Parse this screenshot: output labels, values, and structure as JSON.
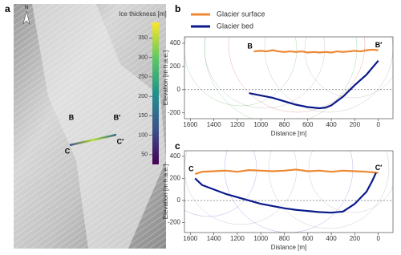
{
  "map": {
    "label": "a",
    "north": "N",
    "colorbar_title": "Ice thickness [m]",
    "colorbar_lim": [
      25,
      390
    ],
    "colorbar_ticks": [
      50,
      100,
      150,
      200,
      250,
      300,
      350
    ],
    "profile_labels": [
      "B",
      "B′",
      "C",
      "C′"
    ]
  },
  "chart_data": [
    {
      "type": "line",
      "label": "b",
      "xlabel": "Distance [m]",
      "ylabel": "Elevation [m h.a.e.]",
      "xlim": [
        1650,
        -125
      ],
      "ylim": [
        -250,
        455
      ],
      "xticks": [
        1600,
        1400,
        1200,
        1000,
        800,
        600,
        400,
        200,
        0
      ],
      "yticks": [
        -200,
        0,
        200,
        400
      ],
      "hlines": [
        0
      ],
      "legend": "top",
      "annotations": [
        "B",
        "B′"
      ],
      "series": [
        {
          "name": "Glacier surface",
          "color": "#ee8833",
          "x": [
            1060,
            1000,
            950,
            900,
            850,
            800,
            750,
            700,
            650,
            600,
            550,
            500,
            450,
            400,
            350,
            300,
            250,
            200,
            150,
            100,
            50,
            0
          ],
          "values": [
            330,
            335,
            330,
            340,
            330,
            325,
            330,
            325,
            330,
            320,
            325,
            320,
            325,
            320,
            330,
            325,
            330,
            335,
            330,
            340,
            345,
            340
          ]
        },
        {
          "name": "Glacier bed",
          "color": "#0a1a8a",
          "x": [
            1100,
            1000,
            900,
            800,
            700,
            600,
            500,
            450,
            400,
            300,
            200,
            100,
            50,
            0
          ],
          "values": [
            -30,
            -50,
            -70,
            -100,
            -130,
            -150,
            -160,
            -155,
            -135,
            -60,
            40,
            130,
            190,
            250
          ]
        }
      ]
    },
    {
      "type": "line",
      "label": "c",
      "xlabel": "Distance [m]",
      "ylabel": "Elevation [m h.a.e.]",
      "xlim": [
        1650,
        -125
      ],
      "ylim": [
        -290,
        450
      ],
      "xticks": [
        1600,
        1400,
        1200,
        1000,
        800,
        600,
        400,
        200,
        0
      ],
      "yticks": [
        -200,
        0,
        200,
        400
      ],
      "hlines": [
        0
      ],
      "annotations": [
        "C",
        "C′"
      ],
      "series": [
        {
          "name": "Glacier surface",
          "color": "#ee8833",
          "x": [
            1560,
            1500,
            1400,
            1300,
            1200,
            1100,
            1000,
            900,
            800,
            700,
            600,
            500,
            400,
            300,
            200,
            100,
            50,
            0
          ],
          "values": [
            240,
            260,
            265,
            270,
            260,
            275,
            270,
            265,
            270,
            280,
            265,
            270,
            260,
            270,
            265,
            260,
            255,
            250
          ]
        },
        {
          "name": "Glacier bed",
          "color": "#0a1a8a",
          "x": [
            1560,
            1500,
            1400,
            1300,
            1200,
            1100,
            1000,
            900,
            800,
            700,
            600,
            500,
            400,
            300,
            200,
            100,
            50,
            20
          ],
          "values": [
            200,
            140,
            100,
            60,
            30,
            0,
            -30,
            -50,
            -70,
            -85,
            -95,
            -105,
            -110,
            -100,
            -30,
            80,
            180,
            250
          ]
        }
      ]
    }
  ]
}
